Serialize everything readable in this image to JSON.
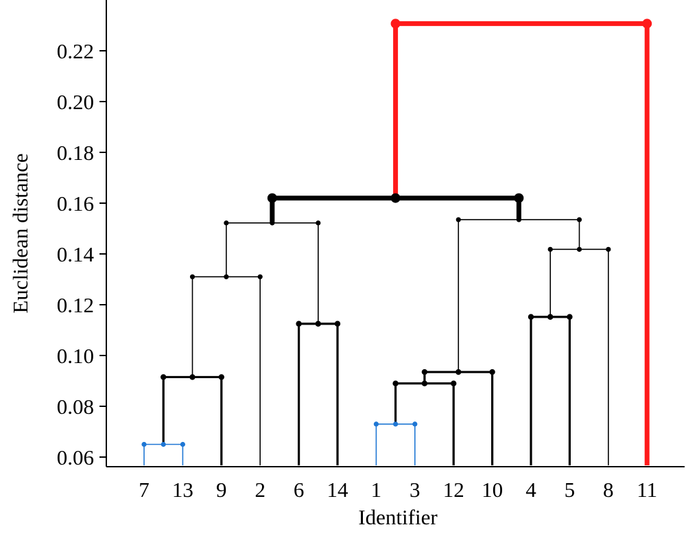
{
  "chart_data": {
    "type": "dendrogram",
    "title": "",
    "xlabel": "Identifier",
    "ylabel": "Euclidean distance",
    "ylim": [
      0.057,
      0.235
    ],
    "yticks": [
      0.06,
      0.08,
      0.1,
      0.12,
      0.14,
      0.16,
      0.18,
      0.2,
      0.22
    ],
    "ytick_labels": [
      "0.06",
      "0.08",
      "0.10",
      "0.12",
      "0.14",
      "0.16",
      "0.18",
      "0.20",
      "0.22"
    ],
    "leaf_order": [
      "7",
      "13",
      "9",
      "2",
      "6",
      "14",
      "1",
      "3",
      "12",
      "10",
      "4",
      "5",
      "8",
      "11"
    ],
    "colors": {
      "default": "#000000",
      "blue": "#1f77d4",
      "red": "#ff1a1a"
    },
    "merges": [
      {
        "id": "A",
        "left": "7",
        "right": "13",
        "height": 0.065,
        "color": "blue",
        "weight": "thin"
      },
      {
        "id": "B",
        "left": "1",
        "right": "3",
        "height": 0.073,
        "color": "blue",
        "weight": "thin"
      },
      {
        "id": "C",
        "left": "B",
        "right": "12",
        "height": 0.089,
        "color": "default",
        "weight": "bold"
      },
      {
        "id": "D",
        "left": "A",
        "right": "9",
        "height": 0.0915,
        "color": "default",
        "weight": "bold"
      },
      {
        "id": "E",
        "left": "C",
        "right": "10",
        "height": 0.0935,
        "color": "default",
        "weight": "bold"
      },
      {
        "id": "F",
        "left": "6",
        "right": "14",
        "height": 0.1125,
        "color": "default",
        "weight": "bold"
      },
      {
        "id": "G",
        "left": "4",
        "right": "H0",
        "height": 0.1152,
        "color": "default",
        "weight": "bold",
        "leaf_pair": [
          "4",
          "5"
        ]
      },
      {
        "id": "H",
        "left": "D",
        "right": "2",
        "height": 0.131,
        "color": "default",
        "weight": "thin"
      },
      {
        "id": "I",
        "left": "G",
        "right": "8",
        "height": 0.1418,
        "color": "default",
        "weight": "thin"
      },
      {
        "id": "J",
        "left": "H",
        "right": "F",
        "height": 0.1522,
        "color": "default",
        "weight": "thin"
      },
      {
        "id": "K",
        "left": "E",
        "right": "I",
        "height": 0.1535,
        "color": "default",
        "weight": "thin"
      },
      {
        "id": "L",
        "left": "J",
        "right": "K",
        "height": 0.162,
        "color": "default",
        "weight": "heavy"
      },
      {
        "id": "M",
        "left": "L",
        "right": "11",
        "height": 0.2307,
        "color": "red",
        "weight": "heavy"
      }
    ]
  }
}
